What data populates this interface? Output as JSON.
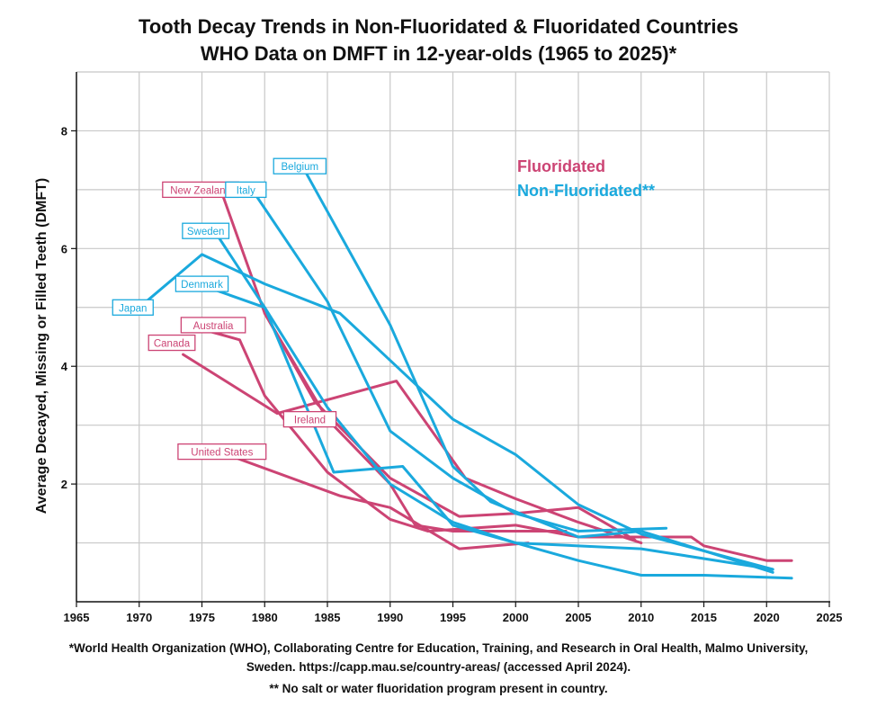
{
  "title_line1": "Tooth Decay Trends in Non-Fluoridated & Fluoridated Countries",
  "title_line2": "WHO Data on DMFT in 12-year-olds (1965 to 2025)*",
  "footnote1": "*World Health Organization (WHO), Collaborating Centre for Education, Training, and Research in Oral Health,  Malmo University,",
  "footnote2": "Sweden. https://capp.mau.se/country-areas/ (accessed April 2024).",
  "footnote3": "** No salt or water fluoridation program present in country.",
  "colors": {
    "fluoridated": "#cc4474",
    "non_fluoridated": "#1aa9dd",
    "grid": "#c8c8c8"
  },
  "chart_data": {
    "type": "line",
    "title": "Tooth Decay Trends in Non-Fluoridated & Fluoridated Countries WHO Data on DMFT in 12-year-olds (1965 to 2025)*",
    "xlabel": "",
    "ylabel": "Average Decayed, Missing or Filled Teeth (DMFT)",
    "xlim": [
      1965,
      2025
    ],
    "ylim": [
      0,
      9
    ],
    "xticks": [
      1965,
      1970,
      1975,
      1980,
      1985,
      1990,
      1995,
      2000,
      2005,
      2010,
      2015,
      2020,
      2025
    ],
    "yticks": [
      2,
      4,
      6,
      8
    ],
    "grid": true,
    "legend": {
      "position": "top-right",
      "entries": [
        {
          "label": "Fluoridated",
          "group": "fluoridated"
        },
        {
          "label": "Non-Fluoridated**",
          "group": "non_fluoridated"
        }
      ]
    },
    "series": [
      {
        "name": "New Zealand",
        "group": "fluoridated",
        "x": [
          1976.5,
          1980,
          1985,
          1990,
          1992,
          1995,
          2000,
          2004
        ],
        "y": [
          7.0,
          4.9,
          3.1,
          2.0,
          1.3,
          1.2,
          1.2,
          1.2
        ]
      },
      {
        "name": "Australia",
        "group": "fluoridated",
        "x": [
          1975.5,
          1978,
          1980,
          1985,
          1990,
          1993,
          2000,
          2005,
          2010,
          2014,
          2015,
          2020,
          2022
        ],
        "y": [
          4.6,
          4.45,
          3.5,
          2.2,
          1.4,
          1.2,
          1.3,
          1.1,
          1.1,
          1.1,
          0.95,
          0.7,
          0.7
        ]
      },
      {
        "name": "Canada",
        "group": "fluoridated",
        "x": [
          1973.5,
          1981,
          1990.5,
          1996,
          2000,
          2005,
          2010
        ],
        "y": [
          4.2,
          3.2,
          3.75,
          2.1,
          1.75,
          1.35,
          1.0
        ]
      },
      {
        "name": "Ireland",
        "group": "fluoridated",
        "x": [
          1980,
          1984,
          1990,
          1995.5,
          2000,
          2005,
          2009.5
        ],
        "y": [
          4.9,
          3.4,
          2.1,
          1.45,
          1.5,
          1.6,
          1.05
        ]
      },
      {
        "name": "United States",
        "group": "fluoridated",
        "x": [
          1977,
          1986,
          1990,
          1995.5,
          2001
        ],
        "y": [
          2.5,
          1.8,
          1.6,
          0.9,
          1.0
        ]
      },
      {
        "name": "Japan",
        "group": "non_fluoridated",
        "x": [
          1970,
          1975,
          1980,
          1986,
          1990,
          1995,
          2000,
          2005,
          2010,
          2020.5
        ],
        "y": [
          5.0,
          5.9,
          5.4,
          4.9,
          4.1,
          3.1,
          2.5,
          1.65,
          1.15,
          0.55
        ]
      },
      {
        "name": "Belgium",
        "group": "non_fluoridated",
        "x": [
          1983,
          1990,
          1995,
          1998,
          2005,
          2010,
          2020.5
        ],
        "y": [
          7.4,
          4.7,
          2.3,
          1.7,
          1.1,
          1.2,
          0.5
        ]
      },
      {
        "name": "Italy",
        "group": "non_fluoridated",
        "x": [
          1979,
          1985,
          1990,
          1995,
          2000,
          2005,
          2012
        ],
        "y": [
          7.0,
          5.1,
          2.9,
          2.1,
          1.5,
          1.2,
          1.25
        ]
      },
      {
        "name": "Sweden",
        "group": "non_fluoridated",
        "x": [
          1976,
          1980,
          1985.5,
          1991,
          1995,
          2000,
          2010,
          2020.5
        ],
        "y": [
          6.3,
          5.0,
          2.2,
          2.3,
          1.3,
          1.0,
          0.9,
          0.55
        ]
      },
      {
        "name": "Denmark",
        "group": "non_fluoridated",
        "x": [
          1976,
          1980,
          1985,
          1990,
          1995,
          2000,
          2005,
          2010,
          2015,
          2022
        ],
        "y": [
          5.3,
          5.0,
          3.3,
          2.0,
          1.35,
          1.0,
          0.7,
          0.45,
          0.45,
          0.4
        ]
      }
    ],
    "labels": [
      {
        "text": "New Zealand",
        "group": "fluoridated",
        "x": 1974.9,
        "y": 7.0
      },
      {
        "text": "Italy",
        "group": "non_fluoridated",
        "x": 1978.5,
        "y": 7.0
      },
      {
        "text": "Belgium",
        "group": "non_fluoridated",
        "x": 1982.8,
        "y": 7.4
      },
      {
        "text": "Sweden",
        "group": "non_fluoridated",
        "x": 1975.3,
        "y": 6.3
      },
      {
        "text": "Denmark",
        "group": "non_fluoridated",
        "x": 1975,
        "y": 5.4
      },
      {
        "text": "Japan",
        "group": "non_fluoridated",
        "x": 1969.5,
        "y": 5.0
      },
      {
        "text": "Australia",
        "group": "fluoridated",
        "x": 1975.9,
        "y": 4.7
      },
      {
        "text": "Canada",
        "group": "fluoridated",
        "x": 1972.6,
        "y": 4.4
      },
      {
        "text": "Ireland",
        "group": "fluoridated",
        "x": 1983.6,
        "y": 3.1
      },
      {
        "text": "United States",
        "group": "fluoridated",
        "x": 1976.6,
        "y": 2.55
      }
    ]
  }
}
